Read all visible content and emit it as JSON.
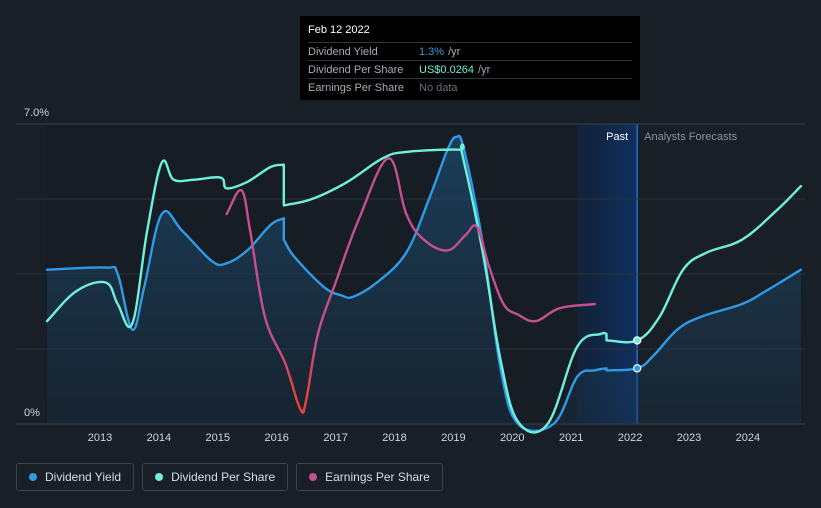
{
  "chart_data": {
    "type": "line",
    "ylim": [
      0,
      7.0
    ],
    "y_tick_labels": [
      "7.0%",
      "0%"
    ],
    "x_tick_labels": [
      "2013",
      "2014",
      "2015",
      "2016",
      "2017",
      "2018",
      "2019",
      "2020",
      "2021",
      "2022",
      "2023",
      "2024"
    ],
    "period_labels": {
      "past": "Past",
      "forecast": "Analysts Forecasts"
    },
    "current_date": 2022.12,
    "series": [
      {
        "name": "Dividend Yield",
        "color": "#2f9ae6",
        "area": true,
        "points": [
          [
            2012.1,
            3.6
          ],
          [
            2013.1,
            3.65
          ],
          [
            2013.3,
            3.5
          ],
          [
            2013.55,
            2.2
          ],
          [
            2013.75,
            3.2
          ],
          [
            2014.05,
            4.9
          ],
          [
            2014.4,
            4.5
          ],
          [
            2014.9,
            3.8
          ],
          [
            2015.15,
            3.75
          ],
          [
            2015.5,
            4.05
          ],
          [
            2015.9,
            4.65
          ],
          [
            2016.12,
            4.8
          ],
          [
            2016.12,
            4.3
          ],
          [
            2016.3,
            3.9
          ],
          [
            2016.8,
            3.2
          ],
          [
            2017.1,
            3.0
          ],
          [
            2017.3,
            2.97
          ],
          [
            2017.7,
            3.3
          ],
          [
            2018.2,
            4.0
          ],
          [
            2018.6,
            5.3
          ],
          [
            2018.9,
            6.4
          ],
          [
            2019.05,
            6.7
          ],
          [
            2019.18,
            6.4
          ],
          [
            2019.5,
            4.2
          ],
          [
            2019.8,
            1.3
          ],
          [
            2020.1,
            0.0
          ],
          [
            2020.7,
            0.0
          ],
          [
            2021.1,
            1.1
          ],
          [
            2021.4,
            1.25
          ],
          [
            2021.6,
            1.3
          ],
          [
            2021.6,
            1.25
          ],
          [
            2022.12,
            1.3
          ],
          [
            2022.4,
            1.6
          ],
          [
            2022.8,
            2.2
          ],
          [
            2023.2,
            2.5
          ],
          [
            2023.9,
            2.8
          ],
          [
            2024.3,
            3.1
          ],
          [
            2024.9,
            3.6
          ]
        ]
      },
      {
        "name": "Dividend Per Share",
        "color": "#6ff0da",
        "area": false,
        "points": [
          [
            2012.1,
            2.4
          ],
          [
            2012.6,
            3.1
          ],
          [
            2013.1,
            3.3
          ],
          [
            2013.3,
            2.8
          ],
          [
            2013.55,
            2.35
          ],
          [
            2013.8,
            4.5
          ],
          [
            2014.05,
            6.1
          ],
          [
            2014.25,
            5.7
          ],
          [
            2014.6,
            5.7
          ],
          [
            2015.05,
            5.75
          ],
          [
            2015.15,
            5.5
          ],
          [
            2015.5,
            5.65
          ],
          [
            2015.9,
            6.0
          ],
          [
            2016.12,
            6.05
          ],
          [
            2016.12,
            5.1
          ],
          [
            2016.6,
            5.25
          ],
          [
            2017.2,
            5.65
          ],
          [
            2017.8,
            6.2
          ],
          [
            2018.2,
            6.35
          ],
          [
            2019.1,
            6.4
          ],
          [
            2019.15,
            6.3
          ],
          [
            2019.5,
            4.0
          ],
          [
            2019.8,
            1.5
          ],
          [
            2020.1,
            0.05
          ],
          [
            2020.6,
            0.0
          ],
          [
            2021.1,
            1.8
          ],
          [
            2021.5,
            2.1
          ],
          [
            2021.6,
            2.1
          ],
          [
            2021.6,
            1.95
          ],
          [
            2022.12,
            1.95
          ],
          [
            2022.5,
            2.5
          ],
          [
            2022.9,
            3.6
          ],
          [
            2023.3,
            4.0
          ],
          [
            2023.9,
            4.3
          ],
          [
            2024.5,
            5.0
          ],
          [
            2024.9,
            5.55
          ]
        ]
      },
      {
        "name": "Earnings Per Share",
        "color": "#c64f8e",
        "color_low": "#e8413b",
        "area": false,
        "points": [
          [
            2015.15,
            4.9
          ],
          [
            2015.4,
            5.45
          ],
          [
            2015.55,
            4.5
          ],
          [
            2015.8,
            2.5
          ],
          [
            2016.15,
            1.4
          ],
          [
            2016.4,
            0.35
          ],
          [
            2016.5,
            0.55
          ],
          [
            2016.7,
            2.1
          ],
          [
            2017.0,
            3.3
          ],
          [
            2017.4,
            4.8
          ],
          [
            2017.9,
            6.2
          ],
          [
            2018.2,
            4.9
          ],
          [
            2018.5,
            4.3
          ],
          [
            2018.9,
            4.05
          ],
          [
            2019.2,
            4.4
          ],
          [
            2019.4,
            4.6
          ],
          [
            2019.6,
            3.7
          ],
          [
            2019.85,
            2.8
          ],
          [
            2020.1,
            2.55
          ],
          [
            2020.4,
            2.4
          ],
          [
            2020.8,
            2.7
          ],
          [
            2021.4,
            2.8
          ]
        ]
      }
    ],
    "markers": [
      {
        "series": "Dividend Per Share",
        "x": 2022.12,
        "y": 1.95
      },
      {
        "series": "Dividend Yield",
        "x": 2022.12,
        "y": 1.3
      }
    ]
  },
  "tooltip": {
    "date": "Feb 12 2022",
    "rows": [
      {
        "label": "Dividend Yield",
        "value": "1.3%",
        "suffix": "/yr"
      },
      {
        "label": "Dividend Per Share",
        "value": "US$0.0264",
        "suffix": "/yr"
      },
      {
        "label": "Earnings Per Share",
        "value": "No data",
        "suffix": ""
      }
    ]
  },
  "legend": [
    {
      "label": "Dividend Yield",
      "color": "#2f9ae6"
    },
    {
      "label": "Dividend Per Share",
      "color": "#6ff0da"
    },
    {
      "label": "Earnings Per Share",
      "color": "#c64f8e"
    }
  ]
}
